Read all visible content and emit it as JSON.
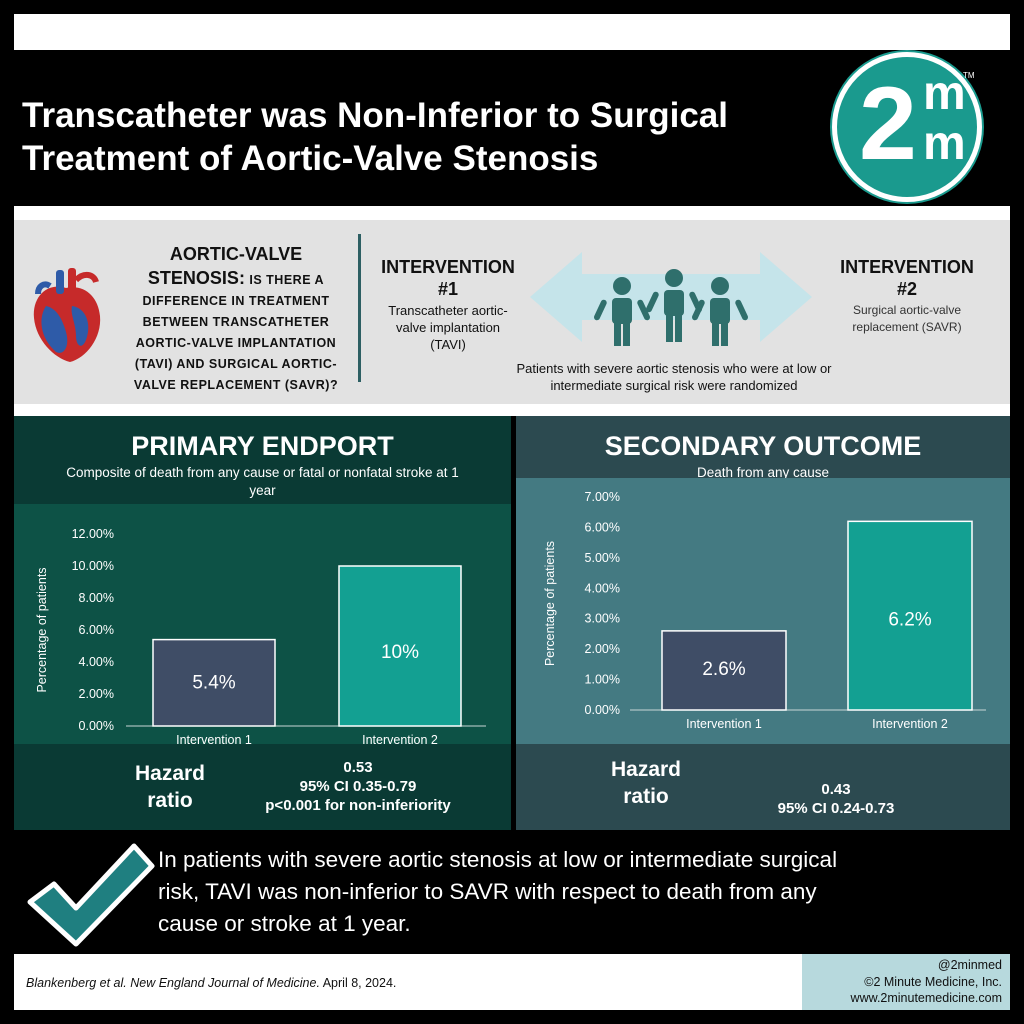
{
  "header": {
    "title_line1": "Transcatheter was Non-Inferior to Surgical",
    "title_line2": "Treatment of Aortic-Valve Stenosis",
    "logo": {
      "digit": "2",
      "m1": "m",
      "m2": "m",
      "tm": "TM",
      "color": "#1a9a8e"
    }
  },
  "question": {
    "head_line1": "AORTIC-VALVE",
    "head_line2_bold": "STENOSIS:",
    "body_line2_rest": "IS THERE A",
    "body_line3": "DIFFERENCE IN TREATMENT",
    "body_line4": "BETWEEN TRANSCATHETER",
    "body_line5": "AORTIC-VALVE IMPLANTATION",
    "body_line6": "(TAVI) AND SURGICAL AORTIC-",
    "body_line7": "VALVE REPLACEMENT (SAVR)?"
  },
  "interventions": {
    "one": {
      "label_line1": "INTERVENTION",
      "label_line2": "#1",
      "desc_line1": "Transcatheter aortic-",
      "desc_line2": "valve implantation",
      "desc_line3": "(TAVI)"
    },
    "two": {
      "label_line1": "INTERVENTION",
      "label_line2": "#2",
      "desc_line1": "Surgical aortic-valve",
      "desc_line2": "replacement (SAVR)"
    },
    "randomized_line1": "Patients with severe aortic stenosis who were at low or",
    "randomized_line2": "intermediate surgical risk were randomized"
  },
  "primary": {
    "title": "PRIMARY ENDPORT",
    "subtitle_line1": "Composite of death from any cause or fatal or nonfatal stroke at 1",
    "subtitle_line2": "year",
    "hr_label_line1": "Hazard",
    "hr_label_line2": "ratio",
    "hr_line1": "0.53",
    "hr_line2": "95% CI 0.35-0.79",
    "hr_line3": "p<0.001 for non-inferiority"
  },
  "secondary": {
    "title": "SECONDARY OUTCOME",
    "subtitle": "Death from any cause",
    "hr_label_line1": "Hazard",
    "hr_label_line2": "ratio",
    "hr_line1": "0.43",
    "hr_line2": "95% CI 0.24-0.73"
  },
  "chart_data": [
    {
      "type": "bar",
      "categories": [
        "Intervention 1",
        "Intervention 2"
      ],
      "values": [
        5.4,
        10
      ],
      "data_labels": [
        "5.4%",
        "10%"
      ],
      "ylabel": "Percentage of patients",
      "yticks": [
        "0.00%",
        "2.00%",
        "4.00%",
        "6.00%",
        "8.00%",
        "10.00%",
        "12.00%"
      ],
      "ylim": [
        0,
        12
      ],
      "colors": [
        "#3f4d66",
        "#13a092"
      ],
      "grid": false
    },
    {
      "type": "bar",
      "categories": [
        "Intervention 1",
        "Intervention 2"
      ],
      "values": [
        2.6,
        6.2
      ],
      "data_labels": [
        "2.6%",
        "6.2%"
      ],
      "ylabel": "Percentage of patients",
      "yticks": [
        "0.00%",
        "1.00%",
        "2.00%",
        "3.00%",
        "4.00%",
        "5.00%",
        "6.00%",
        "7.00%"
      ],
      "ylim": [
        0,
        7
      ],
      "colors": [
        "#3f4d66",
        "#13a092"
      ],
      "grid": false
    }
  ],
  "conclusion": {
    "line1": "In patients with severe aortic stenosis at low or intermediate surgical",
    "line2": "risk, TAVI was non-inferior to SAVR with respect to death from any",
    "line3": "cause or stroke at 1 year."
  },
  "footer": {
    "citation_italic": "Blankenberg et al. New England Journal of Medicine.",
    "citation_date": " April 8, 2024.",
    "handle": "@2minmed",
    "company": "©2 Minute Medicine, Inc.",
    "website": "www.2minutemedicine.com"
  }
}
